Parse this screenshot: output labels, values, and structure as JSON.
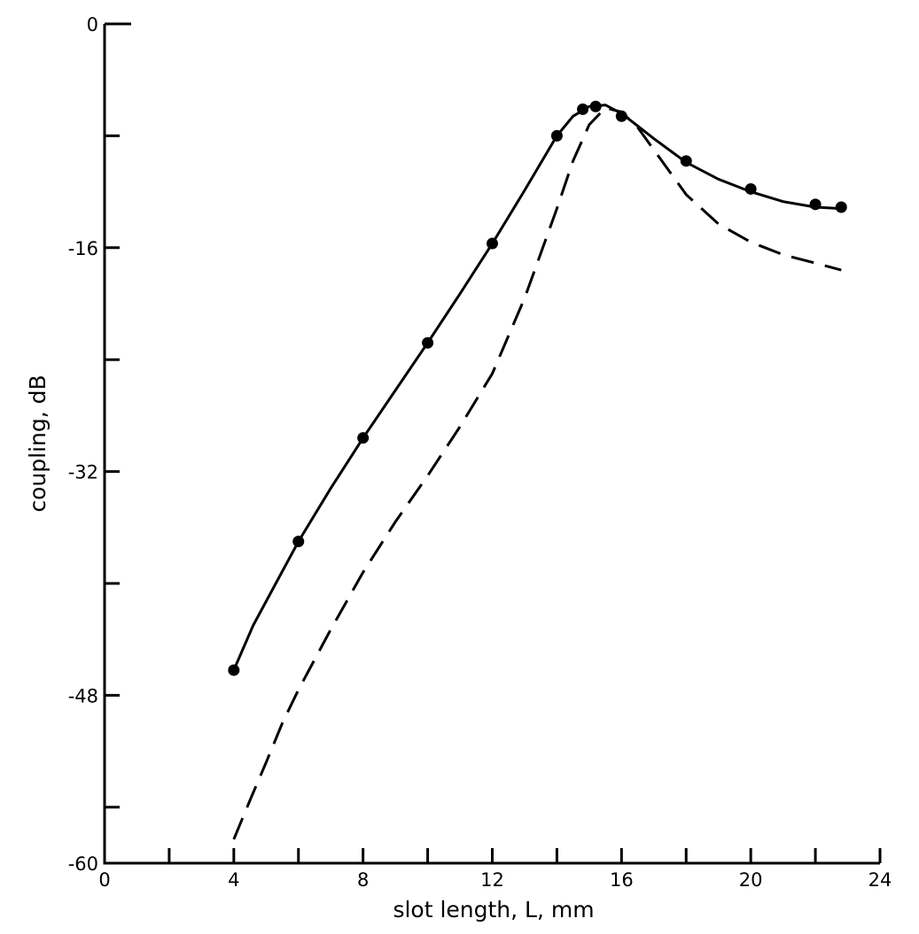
{
  "chart_data": {
    "type": "line",
    "title": "",
    "xlabel": "slot length, L,  mm",
    "ylabel": "coupling, dB",
    "xlim": [
      0,
      24
    ],
    "ylim": [
      -60,
      0
    ],
    "x_ticks": [
      0,
      2,
      4,
      6,
      8,
      10,
      12,
      14,
      16,
      18,
      20,
      22,
      24
    ],
    "x_tick_labels": [
      "0",
      "",
      "4",
      "",
      "8",
      "",
      "12",
      "",
      "16",
      "",
      "20",
      "",
      "24"
    ],
    "y_ticks": [
      0,
      -8,
      -16,
      -24,
      -32,
      -40,
      -48,
      -56,
      -60
    ],
    "y_tick_labels": [
      "0",
      "",
      "-16",
      "",
      "-32",
      "",
      "-48",
      "",
      "-60"
    ],
    "grid": false,
    "legend": "none",
    "series": [
      {
        "style": "solid-with-markers",
        "points": [
          [
            4,
            -46.2
          ],
          [
            6,
            -37.0
          ],
          [
            8,
            -29.6
          ],
          [
            10,
            -22.8
          ],
          [
            12,
            -15.7
          ],
          [
            14,
            -8.0
          ],
          [
            14.8,
            -6.1
          ],
          [
            15.2,
            -5.9
          ],
          [
            16,
            -6.6
          ],
          [
            18,
            -9.8
          ],
          [
            20,
            -11.8
          ],
          [
            22,
            -12.9
          ],
          [
            22.8,
            -13.1
          ]
        ],
        "curve": [
          [
            4,
            -46.2
          ],
          [
            4.6,
            -43.0
          ],
          [
            5.3,
            -40.0
          ],
          [
            6,
            -37.0
          ],
          [
            7,
            -33.2
          ],
          [
            8,
            -29.6
          ],
          [
            9,
            -26.2
          ],
          [
            10,
            -22.8
          ],
          [
            11,
            -19.3
          ],
          [
            12,
            -15.7
          ],
          [
            13,
            -11.9
          ],
          [
            14,
            -8.0
          ],
          [
            14.5,
            -6.6
          ],
          [
            15.0,
            -5.9
          ],
          [
            15.5,
            -5.8
          ],
          [
            16,
            -6.4
          ],
          [
            16.5,
            -7.3
          ],
          [
            17,
            -8.2
          ],
          [
            18,
            -9.9
          ],
          [
            19,
            -11.1
          ],
          [
            20,
            -12.0
          ],
          [
            21,
            -12.7
          ],
          [
            22,
            -13.1
          ],
          [
            22.8,
            -13.2
          ]
        ]
      },
      {
        "style": "dashed",
        "curve": [
          [
            4,
            -58.3
          ],
          [
            4.5,
            -55.5
          ],
          [
            5,
            -52.8
          ],
          [
            5.5,
            -50.0
          ],
          [
            6,
            -47.6
          ],
          [
            7,
            -43.3
          ],
          [
            8,
            -39.2
          ],
          [
            9,
            -35.6
          ],
          [
            10,
            -32.3
          ],
          [
            11,
            -28.8
          ],
          [
            12,
            -25.0
          ],
          [
            13,
            -19.6
          ],
          [
            14,
            -13.2
          ],
          [
            14.5,
            -9.8
          ],
          [
            15,
            -7.2
          ],
          [
            15.5,
            -6.0
          ],
          [
            16,
            -6.3
          ],
          [
            16.5,
            -7.4
          ],
          [
            17,
            -9.0
          ],
          [
            18,
            -12.2
          ],
          [
            19,
            -14.3
          ],
          [
            20,
            -15.6
          ],
          [
            21,
            -16.5
          ],
          [
            22,
            -17.1
          ],
          [
            22.8,
            -17.6
          ]
        ]
      }
    ]
  }
}
